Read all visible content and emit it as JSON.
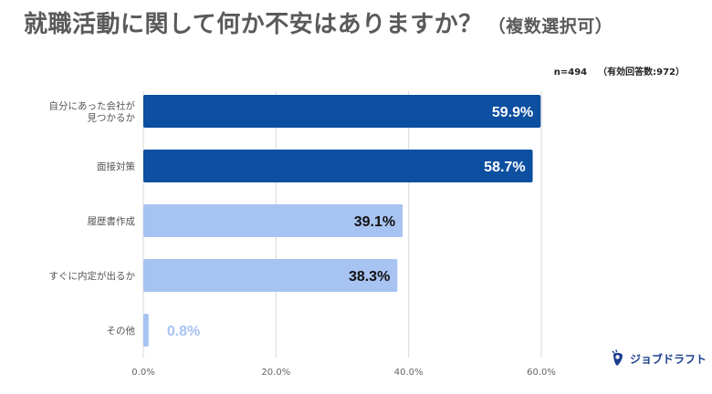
{
  "title": {
    "main": "就職活動に関して何か不安はありますか？",
    "sub": "（複数選択可）"
  },
  "sample_note": {
    "n": "n=494",
    "valid": "（有効回答数:972）"
  },
  "logo": {
    "text": "ジョブドラフト",
    "icon": "guitar-pick-icon"
  },
  "colors": {
    "dark_bar": "#0d4fa0",
    "light_bar": "#a7c3f2",
    "grid": "#d9d9d9"
  },
  "chart_data": {
    "type": "bar",
    "orientation": "horizontal",
    "categories": [
      [
        "自分にあった会社が",
        "見つかるか"
      ],
      [
        "面接対策"
      ],
      [
        "履歴書作成"
      ],
      [
        "すぐに内定が出るか"
      ],
      [
        "その他"
      ]
    ],
    "values": [
      59.9,
      58.7,
      39.1,
      38.3,
      0.8
    ],
    "value_labels": [
      "59.9%",
      "58.7%",
      "39.1%",
      "38.3%",
      "0.8%"
    ],
    "bar_colors": [
      "#0d4fa0",
      "#0d4fa0",
      "#a7c3f2",
      "#a7c3f2",
      "#a7c3f2"
    ],
    "xlim": [
      0,
      60
    ],
    "xticks": [
      0,
      20,
      40,
      60
    ],
    "xtick_labels": [
      "0.0%",
      "20.0%",
      "40.0%",
      "60.0%"
    ],
    "grid": true,
    "legend": "none"
  }
}
